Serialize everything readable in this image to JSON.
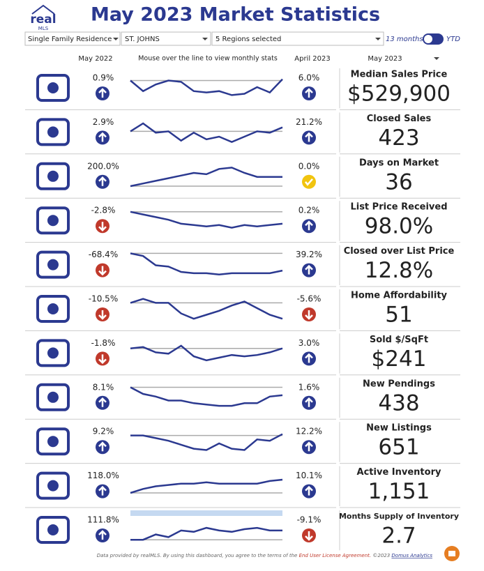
{
  "header": {
    "logo": "real",
    "logo_sub": "MLS",
    "title": "May 2023 Market Statistics"
  },
  "filters": {
    "property_type": "Single Family Residence",
    "county": "ST. JOHNS",
    "regions": "5 Regions selected",
    "toggle_left": "13 months",
    "toggle_right": "YTD"
  },
  "columns": {
    "prior": "May 2022",
    "hint": "Mouse over the line to view monthly stats",
    "previous": "April 2023",
    "current": "May 2023"
  },
  "rows": [
    {
      "change": "0.9%",
      "direction": "up",
      "trend": [
        75,
        35,
        60,
        75,
        70,
        35,
        30,
        35,
        20,
        25,
        50,
        30,
        80
      ],
      "month_change": "6.0%",
      "month_direction": "up",
      "metric": "Median Sales Price",
      "value": "$529,900"
    },
    {
      "change": "2.9%",
      "direction": "up",
      "trend": [
        50,
        80,
        45,
        50,
        15,
        45,
        20,
        30,
        10,
        30,
        50,
        45,
        65
      ],
      "month_change": "21.2%",
      "month_direction": "up",
      "metric": "Closed Sales",
      "value": "423"
    },
    {
      "change": "200.0%",
      "direction": "up",
      "trend": [
        10,
        20,
        30,
        40,
        50,
        60,
        55,
        75,
        80,
        60,
        45,
        45,
        45
      ],
      "month_change": "0.0%",
      "month_direction": "neutral",
      "metric": "Days on Market",
      "value": "36"
    },
    {
      "change": "-2.8%",
      "direction": "down",
      "trend": [
        80,
        70,
        60,
        50,
        35,
        30,
        25,
        30,
        20,
        30,
        25,
        30,
        35
      ],
      "month_change": "0.2%",
      "month_direction": "up",
      "metric": "List Price Received",
      "value": "98.0%"
    },
    {
      "change": "-68.4%",
      "direction": "down",
      "trend": [
        90,
        80,
        45,
        40,
        20,
        15,
        15,
        10,
        15,
        15,
        15,
        15,
        25
      ],
      "month_change": "39.2%",
      "month_direction": "up",
      "metric": "Closed over List Price",
      "value": "12.8%"
    },
    {
      "change": "-10.5%",
      "direction": "down",
      "trend": [
        70,
        85,
        70,
        70,
        30,
        10,
        25,
        40,
        60,
        75,
        50,
        25,
        10
      ],
      "month_change": "-5.6%",
      "month_direction": "down",
      "metric": "Home Affordability",
      "value": "51"
    },
    {
      "change": "-1.8%",
      "direction": "down",
      "trend": [
        65,
        70,
        50,
        45,
        75,
        35,
        20,
        30,
        40,
        35,
        40,
        50,
        65
      ],
      "month_change": "3.0%",
      "month_direction": "up",
      "metric": "Sold $/SqFt",
      "value": "$241"
    },
    {
      "change": "8.1%",
      "direction": "up",
      "trend": [
        85,
        60,
        50,
        35,
        35,
        25,
        20,
        15,
        15,
        25,
        25,
        50,
        55
      ],
      "month_change": "1.6%",
      "month_direction": "up",
      "metric": "New Pendings",
      "value": "438"
    },
    {
      "change": "9.2%",
      "direction": "up",
      "trend": [
        70,
        70,
        60,
        50,
        35,
        20,
        15,
        40,
        20,
        15,
        55,
        50,
        75
      ],
      "month_change": "12.2%",
      "month_direction": "up",
      "metric": "New Listings",
      "value": "651"
    },
    {
      "change": "118.0%",
      "direction": "up",
      "trend": [
        20,
        35,
        45,
        50,
        55,
        55,
        60,
        55,
        55,
        55,
        55,
        65,
        70
      ],
      "month_change": "10.1%",
      "month_direction": "up",
      "metric": "Active Inventory",
      "value": "1,151"
    },
    {
      "change": "111.8%",
      "direction": "up",
      "trend": [
        10,
        10,
        30,
        20,
        45,
        40,
        55,
        45,
        40,
        50,
        55,
        45,
        45
      ],
      "month_change": "-9.1%",
      "month_direction": "down",
      "metric": "Months Supply of Inventory",
      "value": "2.7"
    }
  ],
  "footer": {
    "text": "Data provided by realMLS.  By using this dashboard, you agree to the terms of the ",
    "link": "End User License Agreement.",
    "text2": "  ©2023 ",
    "link2": "Domus Analytics"
  }
}
